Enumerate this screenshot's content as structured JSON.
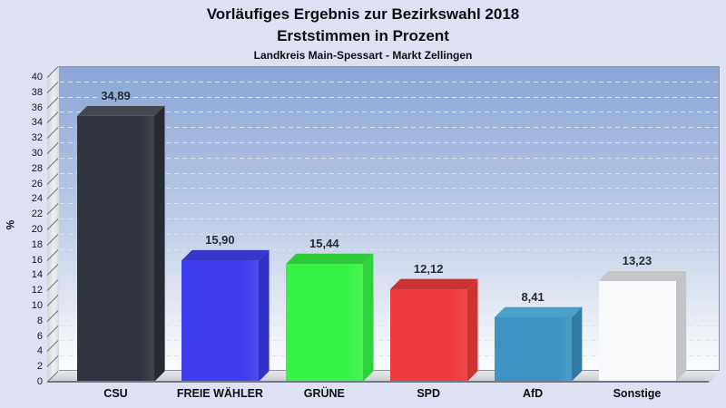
{
  "header": {
    "title_line1": "Vorläufiges Ergebnis zur Bezirkswahl 2018",
    "title_line2": "Erststimmen in Prozent",
    "subtitle": "Landkreis Main-Spessart - Markt Zellingen"
  },
  "chart_data": {
    "type": "bar",
    "style": "3d-column",
    "title": "Vorläufiges Ergebnis zur Bezirkswahl 2018 — Erststimmen in Prozent",
    "subtitle": "Landkreis Main-Spessart - Markt Zellingen",
    "categories": [
      "CSU",
      "FREIE WÄHLER",
      "GRÜNE",
      "SPD",
      "AfD",
      "Sonstige"
    ],
    "values": [
      34.89,
      15.9,
      15.44,
      12.12,
      8.41,
      13.23
    ],
    "value_labels": [
      "34,89",
      "15,90",
      "15,44",
      "12,12",
      "8,41",
      "13,23"
    ],
    "xlabel": "",
    "ylabel": "%",
    "ylim": [
      0,
      40
    ],
    "ytick_step": 2,
    "grid": "horizontal-dashed",
    "legend": "none",
    "bar_colors": [
      {
        "party": "CSU",
        "front": "#2e333d",
        "top": "#414854",
        "side": "#262a33"
      },
      {
        "party": "FREIE WÄHLER",
        "front": "#3e3eee",
        "top": "#3737cd",
        "side": "#3232c4"
      },
      {
        "party": "GRÜNE",
        "front": "#38f347",
        "top": "#2cc939",
        "side": "#2ed23c"
      },
      {
        "party": "SPD",
        "front": "#ee3c3c",
        "top": "#c73232",
        "side": "#cc3434"
      },
      {
        "party": "AfD",
        "front": "#3d93c3",
        "top": "#4aa0c9",
        "side": "#2f7ba5"
      },
      {
        "party": "Sonstige",
        "front": "#f7f9fa",
        "top": "#c4c6ca",
        "side": "#c2c4c8"
      }
    ]
  },
  "colors": {
    "background": "#dde1f2",
    "plot_gradient_top": "#8aa5d7",
    "plot_gradient_bottom": "#fbfcfe",
    "wall_gray": "#dcdde1",
    "floor_gray": "#d4d5d9",
    "grid_line": "#dfe4ee",
    "axis_edge": "#8a8fa2",
    "text": "#0c0e12"
  }
}
